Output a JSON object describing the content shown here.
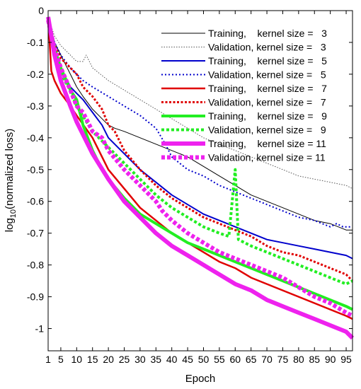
{
  "chart_data": {
    "type": "line",
    "title": "",
    "xlabel": "Epoch",
    "ylabel_main": "log",
    "ylabel_sub": "10",
    "ylabel_rest": "(normalized loss)",
    "xlim": [
      1,
      97
    ],
    "ylim": [
      -1.07,
      0
    ],
    "xticks": [
      1,
      5,
      10,
      15,
      20,
      25,
      30,
      35,
      40,
      45,
      50,
      55,
      60,
      65,
      70,
      75,
      80,
      85,
      90,
      95
    ],
    "yticks": [
      0,
      -0.1,
      -0.2,
      -0.3,
      -0.4,
      -0.5,
      -0.6,
      -0.7,
      -0.8,
      -0.9,
      -1
    ],
    "ytick_labels": [
      "0",
      "-0.1",
      "-0.2",
      "-0.3",
      "-0.4",
      "-0.5",
      "-0.6",
      "-0.7",
      "-0.8",
      "-0.9",
      "-1"
    ],
    "legend_position": "top-right",
    "series": [
      {
        "name": "Training,    kernel size =   3",
        "color": "#000000",
        "width": 1,
        "dash": "none",
        "x": [
          1,
          3,
          5,
          8,
          10,
          12,
          15,
          18,
          20,
          22,
          25,
          30,
          35,
          40,
          45,
          50,
          55,
          60,
          65,
          70,
          75,
          80,
          85,
          90,
          95,
          97
        ],
        "y": [
          -0.02,
          -0.1,
          -0.14,
          -0.2,
          -0.24,
          -0.27,
          -0.31,
          -0.34,
          -0.36,
          -0.37,
          -0.38,
          -0.4,
          -0.42,
          -0.44,
          -0.46,
          -0.49,
          -0.52,
          -0.55,
          -0.58,
          -0.6,
          -0.62,
          -0.64,
          -0.66,
          -0.67,
          -0.69,
          -0.69
        ]
      },
      {
        "name": "Validation, kernel size =   3",
        "color": "#555555",
        "width": 1,
        "dash": "1.5,2",
        "x": [
          1,
          3,
          5,
          8,
          10,
          12,
          13,
          15,
          20,
          25,
          30,
          35,
          40,
          45,
          50,
          55,
          60,
          65,
          70,
          75,
          80,
          85,
          90,
          95,
          97
        ],
        "y": [
          -0.02,
          -0.08,
          -0.11,
          -0.14,
          -0.16,
          -0.16,
          -0.14,
          -0.18,
          -0.22,
          -0.25,
          -0.28,
          -0.31,
          -0.34,
          -0.37,
          -0.4,
          -0.42,
          -0.44,
          -0.46,
          -0.48,
          -0.5,
          -0.52,
          -0.53,
          -0.54,
          -0.55,
          -0.56
        ]
      },
      {
        "name": "Training,    kernel size =   5",
        "color": "#0000cc",
        "width": 2,
        "dash": "none",
        "x": [
          1,
          3,
          5,
          8,
          10,
          12,
          15,
          18,
          20,
          25,
          30,
          35,
          40,
          45,
          50,
          55,
          60,
          65,
          70,
          75,
          80,
          85,
          90,
          95,
          97
        ],
        "y": [
          -0.03,
          -0.12,
          -0.18,
          -0.24,
          -0.26,
          -0.28,
          -0.32,
          -0.36,
          -0.4,
          -0.45,
          -0.5,
          -0.54,
          -0.58,
          -0.61,
          -0.64,
          -0.66,
          -0.68,
          -0.7,
          -0.72,
          -0.73,
          -0.74,
          -0.75,
          -0.76,
          -0.77,
          -0.78
        ]
      },
      {
        "name": "Validation, kernel size =   5",
        "color": "#0000cc",
        "width": 2,
        "dash": "2,3",
        "x": [
          1,
          3,
          5,
          8,
          10,
          12,
          15,
          20,
          25,
          30,
          35,
          38,
          40,
          45,
          50,
          55,
          60,
          65,
          70,
          75,
          80,
          85,
          90,
          92,
          94,
          97
        ],
        "y": [
          -0.03,
          -0.1,
          -0.14,
          -0.18,
          -0.2,
          -0.22,
          -0.24,
          -0.27,
          -0.3,
          -0.33,
          -0.37,
          -0.42,
          -0.46,
          -0.5,
          -0.52,
          -0.55,
          -0.57,
          -0.59,
          -0.61,
          -0.63,
          -0.65,
          -0.66,
          -0.68,
          -0.67,
          -0.68,
          -0.68
        ]
      },
      {
        "name": "Training,    kernel size =   7",
        "color": "#e00000",
        "width": 2.5,
        "dash": "none",
        "x": [
          1,
          2,
          3,
          5,
          8,
          10,
          15,
          20,
          25,
          30,
          35,
          40,
          45,
          50,
          55,
          60,
          65,
          70,
          75,
          80,
          85,
          90,
          95,
          97
        ],
        "y": [
          -0.02,
          -0.19,
          -0.22,
          -0.26,
          -0.3,
          -0.33,
          -0.4,
          -0.5,
          -0.56,
          -0.62,
          -0.66,
          -0.7,
          -0.73,
          -0.76,
          -0.79,
          -0.81,
          -0.84,
          -0.86,
          -0.88,
          -0.9,
          -0.92,
          -0.94,
          -0.96,
          -0.97
        ]
      },
      {
        "name": "Validation, kernel size =   7",
        "color": "#e00000",
        "width": 3,
        "dash": "3,2.5",
        "x": [
          1,
          3,
          5,
          8,
          10,
          12,
          15,
          18,
          20,
          22,
          25,
          30,
          35,
          40,
          45,
          50,
          55,
          60,
          65,
          70,
          75,
          80,
          85,
          90,
          95,
          97
        ],
        "y": [
          -0.03,
          -0.11,
          -0.15,
          -0.18,
          -0.2,
          -0.24,
          -0.27,
          -0.31,
          -0.36,
          -0.38,
          -0.44,
          -0.5,
          -0.55,
          -0.59,
          -0.62,
          -0.65,
          -0.67,
          -0.69,
          -0.71,
          -0.74,
          -0.76,
          -0.77,
          -0.79,
          -0.81,
          -0.83,
          -0.85
        ]
      },
      {
        "name": "Training,    kernel size =   9",
        "color": "#22ee22",
        "width": 4,
        "dash": "none",
        "x": [
          1,
          3,
          5,
          8,
          10,
          12,
          15,
          18,
          20,
          25,
          30,
          35,
          40,
          45,
          50,
          55,
          60,
          65,
          70,
          75,
          80,
          85,
          90,
          95,
          97
        ],
        "y": [
          -0.02,
          -0.12,
          -0.18,
          -0.25,
          -0.28,
          -0.36,
          -0.44,
          -0.5,
          -0.53,
          -0.59,
          -0.64,
          -0.67,
          -0.7,
          -0.73,
          -0.75,
          -0.77,
          -0.79,
          -0.81,
          -0.83,
          -0.85,
          -0.87,
          -0.89,
          -0.91,
          -0.93,
          -0.94
        ]
      },
      {
        "name": "Validation, kernel size =   9",
        "color": "#22ee22",
        "width": 4,
        "dash": "4,3",
        "x": [
          1,
          3,
          5,
          8,
          10,
          15,
          20,
          25,
          30,
          35,
          40,
          45,
          50,
          55,
          58,
          60,
          61,
          65,
          70,
          75,
          80,
          85,
          90,
          95,
          97
        ],
        "y": [
          -0.03,
          -0.14,
          -0.2,
          -0.25,
          -0.3,
          -0.38,
          -0.43,
          -0.48,
          -0.53,
          -0.58,
          -0.62,
          -0.65,
          -0.68,
          -0.7,
          -0.71,
          -0.5,
          -0.72,
          -0.74,
          -0.76,
          -0.78,
          -0.8,
          -0.82,
          -0.84,
          -0.86,
          -0.85
        ]
      },
      {
        "name": "Training,    kernel size = 11",
        "color": "#ee22ee",
        "width": 6,
        "dash": "none",
        "x": [
          1,
          3,
          5,
          8,
          10,
          15,
          20,
          25,
          30,
          35,
          40,
          45,
          50,
          55,
          60,
          65,
          70,
          75,
          80,
          85,
          90,
          95,
          97
        ],
        "y": [
          -0.02,
          -0.14,
          -0.22,
          -0.3,
          -0.35,
          -0.45,
          -0.53,
          -0.6,
          -0.65,
          -0.7,
          -0.74,
          -0.77,
          -0.8,
          -0.83,
          -0.86,
          -0.88,
          -0.91,
          -0.93,
          -0.95,
          -0.97,
          -0.99,
          -1.01,
          -1.03
        ]
      },
      {
        "name": "Validation, kernel size = 11",
        "color": "#ee22ee",
        "width": 6,
        "dash": "5,3",
        "x": [
          1,
          3,
          5,
          8,
          10,
          12,
          15,
          18,
          20,
          25,
          30,
          35,
          37,
          40,
          45,
          50,
          55,
          60,
          65,
          70,
          75,
          80,
          85,
          90,
          95,
          97
        ],
        "y": [
          -0.03,
          -0.12,
          -0.18,
          -0.25,
          -0.3,
          -0.32,
          -0.38,
          -0.4,
          -0.44,
          -0.5,
          -0.55,
          -0.6,
          -0.63,
          -0.66,
          -0.7,
          -0.73,
          -0.76,
          -0.78,
          -0.8,
          -0.82,
          -0.84,
          -0.87,
          -0.9,
          -0.92,
          -0.95,
          -0.96
        ]
      }
    ]
  }
}
